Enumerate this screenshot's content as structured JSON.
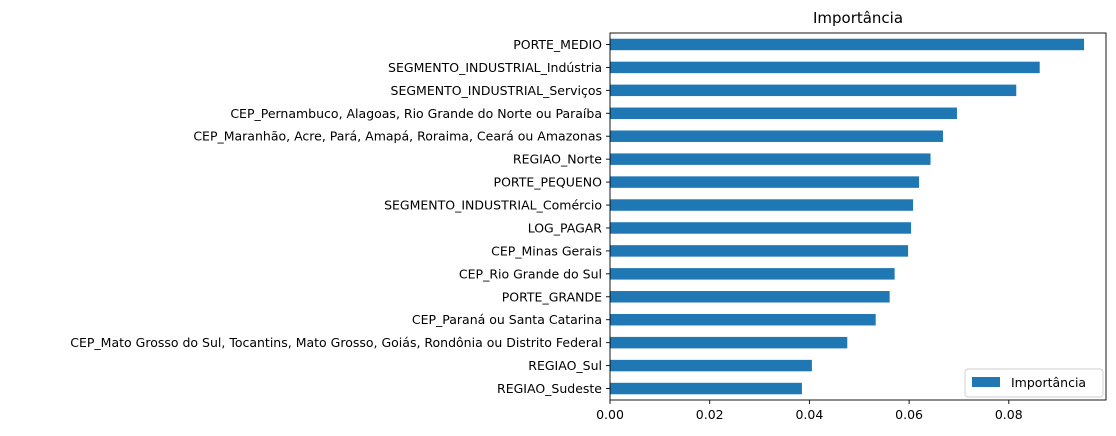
{
  "chart_data": {
    "type": "bar",
    "orientation": "horizontal",
    "title": "Importância",
    "xlabel": "",
    "ylabel": "",
    "xlim": [
      0,
      0.0995
    ],
    "xticks": [
      0.0,
      0.02,
      0.04,
      0.06,
      0.08
    ],
    "xtick_labels": [
      "0.00",
      "0.02",
      "0.04",
      "0.06",
      "0.08"
    ],
    "grid": false,
    "legend_position": "bottom-right",
    "bar_color": "#1f77b4",
    "series": [
      {
        "name": "Importância",
        "values": [
          0.0951,
          0.0862,
          0.0815,
          0.0696,
          0.0668,
          0.0643,
          0.062,
          0.0608,
          0.0604,
          0.0598,
          0.0571,
          0.0561,
          0.0533,
          0.0476,
          0.0405,
          0.0385
        ]
      }
    ],
    "categories": [
      "PORTE_MEDIO",
      "SEGMENTO_INDUSTRIAL_Indústria",
      "SEGMENTO_INDUSTRIAL_Serviços",
      "CEP_Pernambuco, Alagoas, Rio Grande do Norte ou Paraíba",
      "CEP_Maranhão, Acre, Pará, Amapá, Roraima, Ceará ou Amazonas",
      "REGIAO_Norte",
      "PORTE_PEQUENO",
      "SEGMENTO_INDUSTRIAL_Comércio",
      "LOG_PAGAR",
      "CEP_Minas Gerais",
      "CEP_Rio Grande do Sul",
      "PORTE_GRANDE",
      "CEP_Paraná ou Santa Catarina",
      "CEP_Mato Grosso do Sul, Tocantins, Mato Grosso, Goiás, Rondônia ou Distrito Federal",
      "REGIAO_Sul",
      "REGIAO_Sudeste"
    ]
  }
}
